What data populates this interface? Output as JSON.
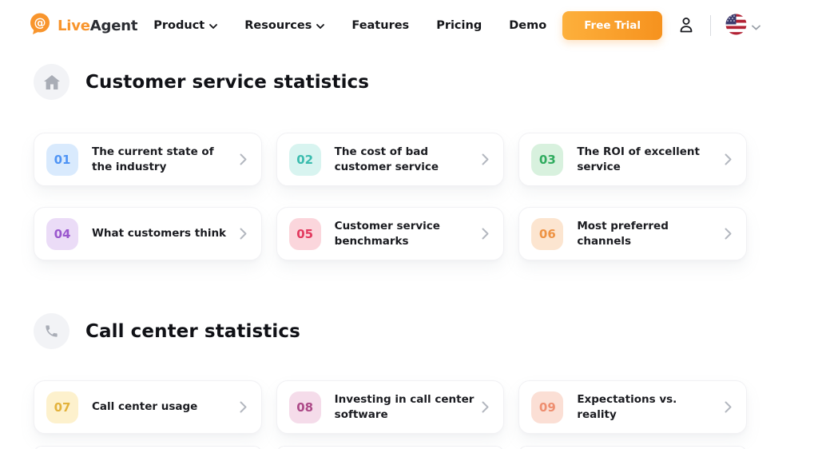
{
  "header": {
    "logo": {
      "brand_first": "Live",
      "brand_second": "Agent",
      "bubble_glyph": "@"
    },
    "nav": [
      {
        "label": "Product",
        "dropdown": true
      },
      {
        "label": "Resources",
        "dropdown": true
      },
      {
        "label": "Features",
        "dropdown": false
      },
      {
        "label": "Pricing",
        "dropdown": false
      },
      {
        "label": "Demo",
        "dropdown": false
      }
    ],
    "free_trial_label": "Free Trial",
    "language_flag": "us-flag"
  },
  "colors": {
    "brand_orange": "#F8952D",
    "button_gradient_start": "#FDB03C",
    "button_gradient_end": "#F6921E",
    "heading_text": "#101116",
    "muted_icon": "#a9adb6"
  },
  "sections": [
    {
      "title": "Customer service statistics",
      "icon": "home-icon",
      "cards": [
        {
          "number": "01",
          "label": "The current state of the industry",
          "badge_bg": "#d9eafd",
          "badge_color": "#4f94f5"
        },
        {
          "number": "02",
          "label": "The cost of bad customer service",
          "badge_bg": "#d8f4f0",
          "badge_color": "#3abcae"
        },
        {
          "number": "03",
          "label": "The ROI of excellent service",
          "badge_bg": "#d8f1de",
          "badge_color": "#2fab5e"
        },
        {
          "number": "04",
          "label": "What customers think",
          "badge_bg": "#ebdcf7",
          "badge_color": "#9a57ce"
        },
        {
          "number": "05",
          "label": "Customer service benchmarks",
          "badge_bg": "#fbd6dc",
          "badge_color": "#e23a5f"
        },
        {
          "number": "06",
          "label": "Most preferred channels",
          "badge_bg": "#fce5d0",
          "badge_color": "#ee9344"
        }
      ]
    },
    {
      "title": "Call center statistics",
      "icon": "phone-icon",
      "cards": [
        {
          "number": "07",
          "label": "Call center usage",
          "badge_bg": "#fdf1cd",
          "badge_color": "#e3b23c"
        },
        {
          "number": "08",
          "label": "Investing in call center software",
          "badge_bg": "#f5dcea",
          "badge_color": "#ad4a88"
        },
        {
          "number": "09",
          "label": "Expectations vs. reality",
          "badge_bg": "#fbdfd5",
          "badge_color": "#ee8e70"
        }
      ]
    }
  ]
}
